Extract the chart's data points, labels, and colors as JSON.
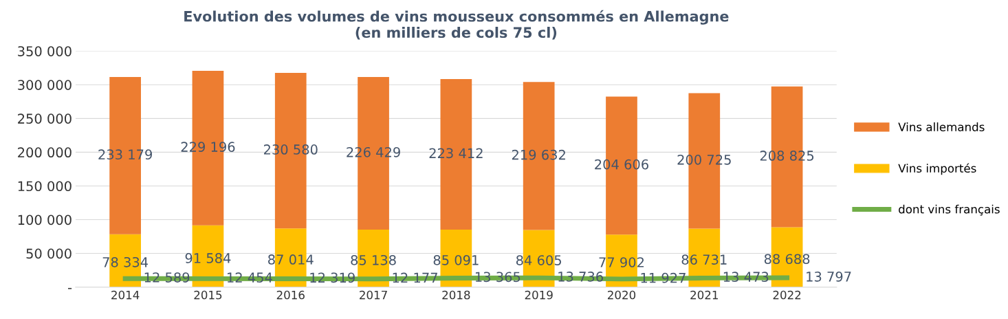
{
  "chart_data": {
    "type": "bar",
    "stacked": true,
    "title": "Evolution des volumes de vins mousseux consommés en Allemagne\n(en milliers de cols 75 cl)",
    "categories": [
      "2014",
      "2015",
      "2016",
      "2017",
      "2018",
      "2019",
      "2020",
      "2021",
      "2022"
    ],
    "series": [
      {
        "name": "Vins importés",
        "color": "#ffc000",
        "values": [
          78334,
          91584,
          87014,
          85138,
          85091,
          84605,
          77902,
          86731,
          88688
        ],
        "value_labels": [
          "78 334",
          "91 584",
          "87 014",
          "85 138",
          "85 091",
          "84 605",
          "77 902",
          "86 731",
          "88 688"
        ]
      },
      {
        "name": "Vins allemands",
        "color": "#ed7d31",
        "values": [
          233179,
          229196,
          230580,
          226429,
          223412,
          219632,
          204606,
          200725,
          208825
        ],
        "value_labels": [
          "233 179",
          "229 196",
          "230 580",
          "226 429",
          "223 412",
          "219 632",
          "204 606",
          "200 725",
          "208 825"
        ]
      },
      {
        "name": "dont vins français",
        "type": "line",
        "color": "#70ad47",
        "values": [
          12589,
          12454,
          12319,
          12177,
          13365,
          13736,
          11927,
          13473,
          13797
        ],
        "value_labels": [
          "12 589",
          "12 454",
          "12 319",
          "12 177",
          "13 365",
          "13 736",
          "11 927",
          "13 473",
          "13 797"
        ]
      }
    ],
    "ylim": [
      0,
      350000
    ],
    "yticks": [
      {
        "value": 0,
        "label": "-"
      },
      {
        "value": 50000,
        "label": "50 000"
      },
      {
        "value": 100000,
        "label": "100 000"
      },
      {
        "value": 150000,
        "label": "150 000"
      },
      {
        "value": 200000,
        "label": "200 000"
      },
      {
        "value": 250000,
        "label": "250 000"
      },
      {
        "value": 300000,
        "label": "300 000"
      },
      {
        "value": 350000,
        "label": "350 000"
      }
    ],
    "grid": "y",
    "legend": "right",
    "marker": "none"
  }
}
